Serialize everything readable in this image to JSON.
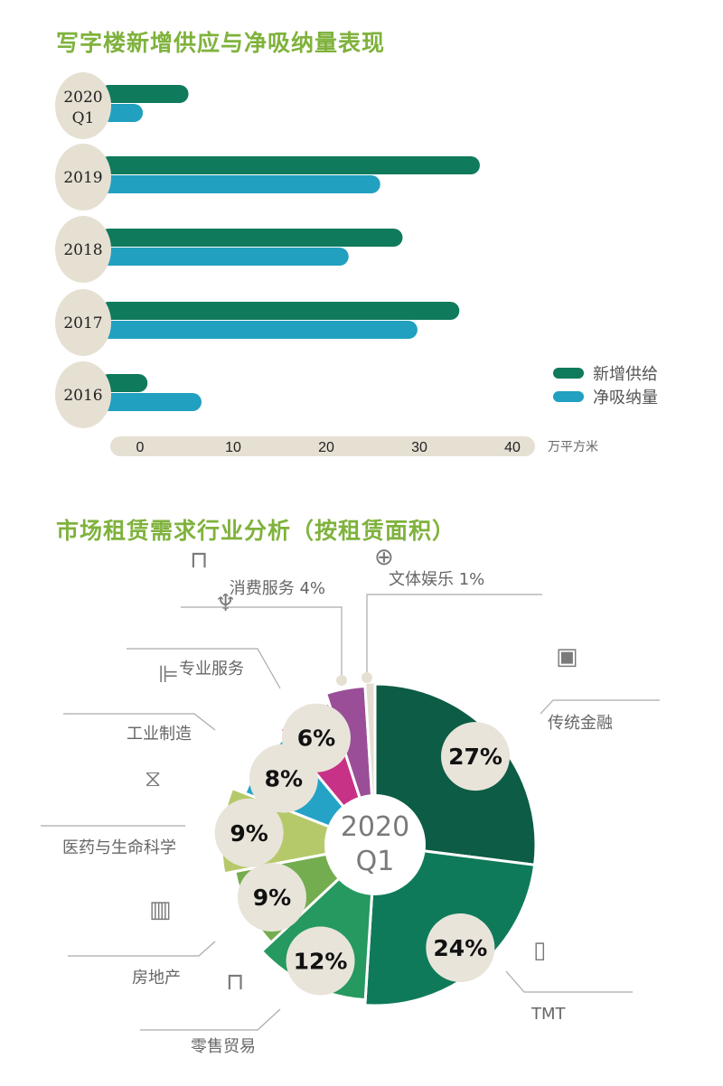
{
  "chart_data": [
    {
      "type": "bar",
      "orientation": "horizontal",
      "title": "写字楼新增供应与净吸纳量表现",
      "categories": [
        "2020 Q1",
        "2019",
        "2018",
        "2017",
        "2016"
      ],
      "series": [
        {
          "name": "新增供给",
          "color": "#0f7a5c",
          "values": [
            5.2,
            36.5,
            28.2,
            34.3,
            0.8
          ]
        },
        {
          "name": "净吸纳量",
          "color": "#21a0c0",
          "values": [
            0.3,
            25.8,
            22.4,
            29.8,
            6.6
          ]
        }
      ],
      "xticks": [
        0,
        10,
        20,
        30,
        40
      ],
      "xlim": [
        0,
        42
      ],
      "xlabel": "万平方米",
      "legend": "right",
      "grid": false
    },
    {
      "type": "pie",
      "title": "市场租赁需求行业分析（按租赁面积）",
      "center_label": [
        "2020",
        "Q1"
      ],
      "slices": [
        {
          "label": "传统金融",
          "value": 27,
          "display": "27%",
          "icon": "safe-icon",
          "color": "#0d5c45"
        },
        {
          "label": "TMT",
          "value": 24,
          "display": "24%",
          "icon": "tablet-icon",
          "color": "#0f7a5a"
        },
        {
          "label": "零售贸易",
          "value": 12,
          "display": "12%",
          "icon": "shopping-bag-icon",
          "color": "#25995f"
        },
        {
          "label": "房地产",
          "value": 9,
          "display": "9%",
          "icon": "building-icon",
          "color": "#74ad4f"
        },
        {
          "label": "医药与生命科学",
          "value": 9,
          "display": "9%",
          "icon": "dna-icon",
          "color": "#b6c96a"
        },
        {
          "label": "工业制造",
          "value": 8,
          "display": "8%",
          "icon": "factory-icon",
          "color": "#24a3c7"
        },
        {
          "label": "专业服务",
          "value": 6,
          "display": "6%",
          "icon": "trophy-icon",
          "color": "#c73286"
        },
        {
          "label": "消费服务 4%",
          "value": 4,
          "display": "",
          "icon": "shopping-bag-icon",
          "color": "#9a4e97"
        },
        {
          "label": "文体娱乐 1%",
          "value": 1,
          "display": "",
          "icon": "basketball-icon",
          "color": "#e4ded2"
        }
      ]
    }
  ]
}
